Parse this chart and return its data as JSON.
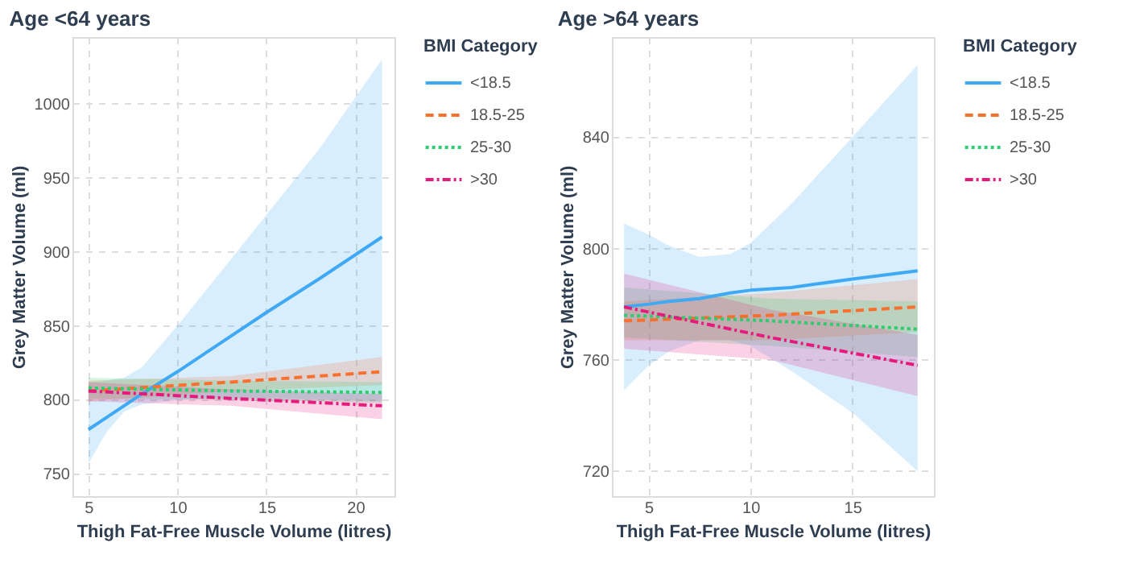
{
  "chart_data": [
    {
      "type": "line",
      "title": "Age <64 years",
      "xlabel": "Thigh Fat-Free Muscle Volume (litres)",
      "ylabel": "Grey Matter Volume (ml)",
      "legend_title": "BMI Category",
      "legend": "right",
      "grid": true,
      "xlim": [
        4.1,
        22.2
      ],
      "ylim": [
        735,
        1045
      ],
      "xticks": [
        5,
        10,
        15,
        20
      ],
      "yticks": [
        750,
        800,
        850,
        900,
        950,
        1000
      ],
      "series": [
        {
          "name": "<18.5",
          "color": "#3fa9f5",
          "line_style": "solid",
          "x": [
            5,
            6,
            7,
            8,
            10,
            12,
            15,
            18,
            21.5
          ],
          "values": [
            780,
            788,
            796,
            804,
            819,
            835,
            859,
            882,
            910
          ],
          "lower": [
            757,
            778,
            792,
            797,
            800,
            801,
            801,
            800,
            799
          ],
          "upper": [
            812,
            813,
            815,
            822,
            850,
            880,
            925,
            970,
            1030
          ]
        },
        {
          "name": "18.5-25",
          "color": "#f8702e",
          "line_style": "dashed",
          "x": [
            5,
            13,
            21.5
          ],
          "values": [
            806,
            812,
            819
          ],
          "lower": [
            799,
            806,
            810
          ],
          "upper": [
            813,
            816,
            829
          ]
        },
        {
          "name": "25-30",
          "color": "#2ecc71",
          "line_style": "dotted",
          "x": [
            5,
            13,
            21.5
          ],
          "values": [
            808,
            806,
            805
          ],
          "lower": [
            801,
            800,
            798
          ],
          "upper": [
            815,
            813,
            812
          ]
        },
        {
          "name": ">30",
          "color": "#e6197d",
          "line_style": "dashdot",
          "x": [
            5,
            13,
            21.5
          ],
          "values": [
            806,
            801,
            796
          ],
          "lower": [
            799,
            796,
            787
          ],
          "upper": [
            812,
            807,
            804
          ]
        }
      ]
    },
    {
      "type": "line",
      "title": "Age >64 years",
      "xlabel": "Thigh Fat-Free Muscle Volume (litres)",
      "ylabel": "Grey Matter Volume (ml)",
      "legend_title": "BMI Category",
      "legend": "right",
      "grid": true,
      "xlim": [
        3.2,
        19
      ],
      "ylim": [
        711,
        876
      ],
      "xticks": [
        5,
        10,
        15
      ],
      "yticks": [
        720,
        760,
        800,
        840
      ],
      "series": [
        {
          "name": "<18.5",
          "color": "#3fa9f5",
          "line_style": "solid",
          "x": [
            3.8,
            5,
            6,
            7.5,
            9,
            10,
            12,
            15,
            18.2
          ],
          "values": [
            779,
            780,
            781,
            782,
            784,
            785,
            786,
            789,
            792
          ],
          "lower": [
            749,
            758,
            763,
            767,
            767,
            765,
            756,
            741,
            720
          ],
          "upper": [
            809,
            805,
            801,
            797,
            798,
            802,
            816,
            840,
            866
          ]
        },
        {
          "name": "18.5-25",
          "color": "#f8702e",
          "line_style": "dashed",
          "x": [
            3.8,
            11,
            18.2
          ],
          "values": [
            774,
            776,
            779
          ],
          "lower": [
            767,
            767,
            770
          ],
          "upper": [
            781,
            784,
            789
          ]
        },
        {
          "name": "25-30",
          "color": "#2ecc71",
          "line_style": "dotted",
          "x": [
            3.8,
            11,
            18.2
          ],
          "values": [
            776,
            774,
            771
          ],
          "lower": [
            768,
            765,
            761
          ],
          "upper": [
            786,
            782,
            781
          ]
        },
        {
          "name": ">30",
          "color": "#e6197d",
          "line_style": "dashdot",
          "x": [
            3.8,
            11,
            18.2
          ],
          "values": [
            779,
            768,
            758
          ],
          "lower": [
            764,
            760,
            747
          ],
          "upper": [
            791,
            778,
            769
          ]
        }
      ]
    }
  ]
}
